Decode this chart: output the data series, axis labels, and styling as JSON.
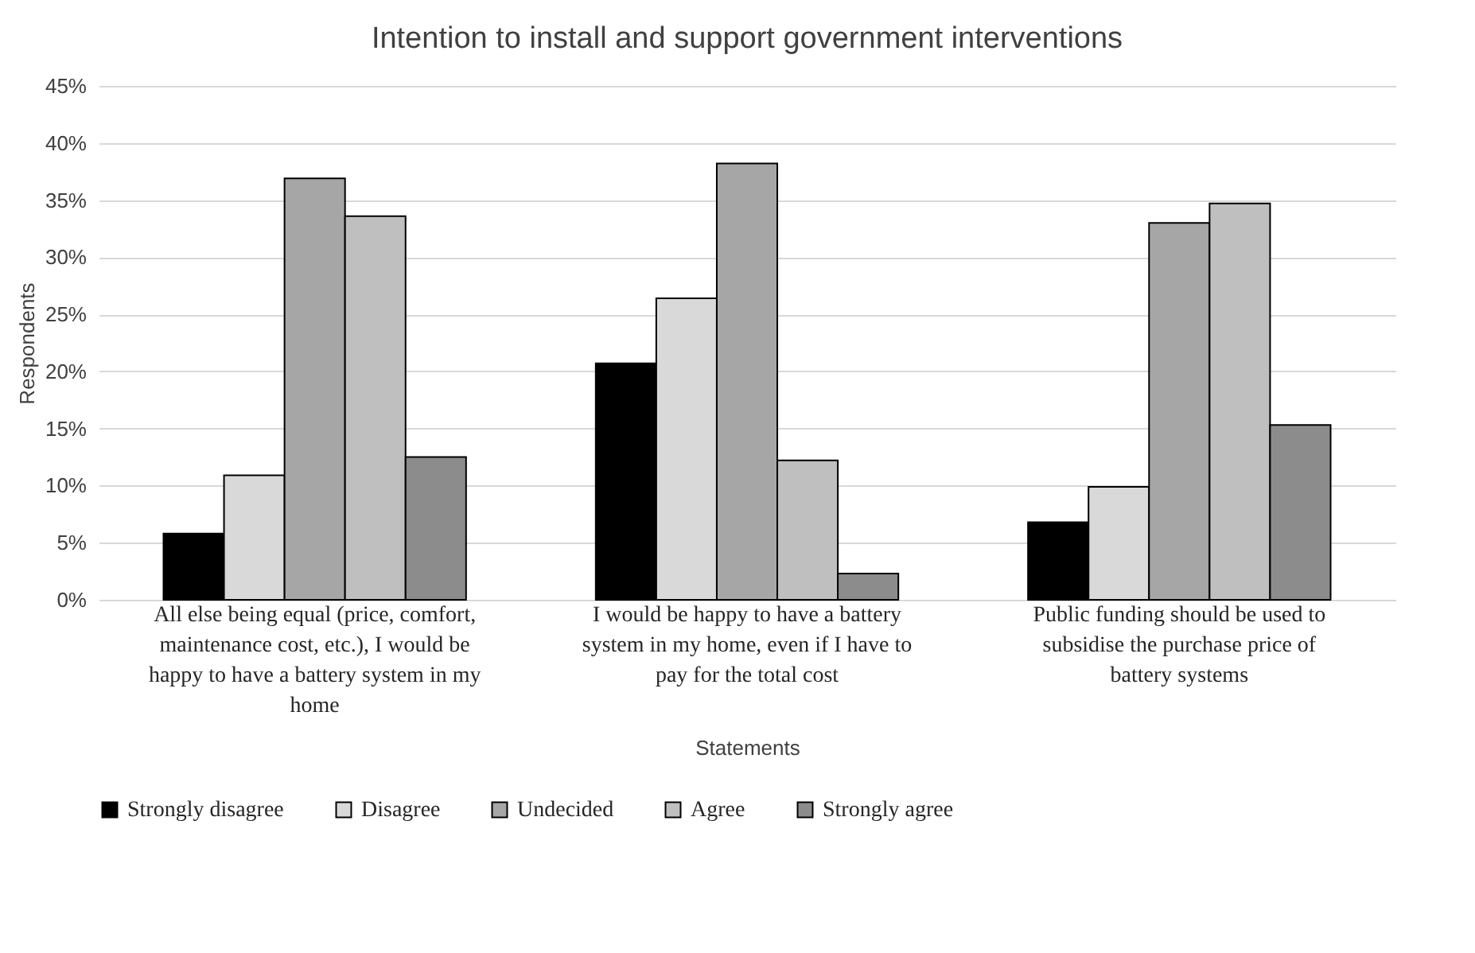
{
  "chart_data": {
    "type": "bar",
    "title": "Intention to install and support government interventions",
    "xlabel": "Statements",
    "ylabel": "Respondents",
    "categories": [
      "All else being equal (price, comfort, maintenance cost, etc.), I would be happy to have a battery system in my home",
      "I would be happy to have a battery system in my home, even if I have to pay for the total cost",
      "Public funding should be used to subsidise the purchase price of battery systems"
    ],
    "series": [
      {
        "name": "Strongly disagree",
        "color": "#000000",
        "values": [
          5.8,
          20.7,
          6.8
        ]
      },
      {
        "name": "Disagree",
        "color": "#d9d9d9",
        "values": [
          10.9,
          26.4,
          9.9
        ]
      },
      {
        "name": "Undecided",
        "color": "#a6a6a6",
        "values": [
          36.9,
          38.2,
          33.0
        ]
      },
      {
        "name": "Agree",
        "color": "#bfbfbf",
        "values": [
          33.6,
          12.2,
          34.7
        ]
      },
      {
        "name": "Strongly agree",
        "color": "#8c8c8c",
        "values": [
          12.5,
          2.3,
          15.3
        ]
      }
    ],
    "ylim": [
      0,
      45
    ],
    "yticks": [
      {
        "value": 0,
        "label": "0%"
      },
      {
        "value": 5,
        "label": "5%"
      },
      {
        "value": 10,
        "label": "10%"
      },
      {
        "value": 15,
        "label": "15%"
      },
      {
        "value": 20,
        "label": "20%"
      },
      {
        "value": 25,
        "label": "25%"
      },
      {
        "value": 30,
        "label": "30%"
      },
      {
        "value": 35,
        "label": "35%"
      },
      {
        "value": 40,
        "label": "40%"
      },
      {
        "value": 45,
        "label": "45%"
      }
    ],
    "grid": "y",
    "legend": "bottom"
  }
}
